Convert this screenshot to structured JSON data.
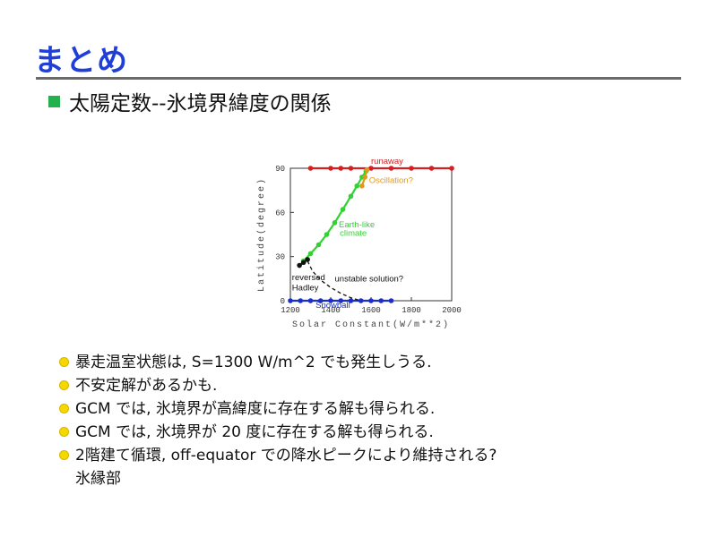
{
  "slide": {
    "title": "まとめ",
    "subheading": "太陽定数--氷境界緯度の関係",
    "bullets": [
      "暴走温室状態は, S=1300 W/m^2 でも発生しうる.",
      "不安定解があるかも.",
      "GCM では, 氷境界が高緯度に存在する解も得られる.",
      "GCM では, 氷境界が 20 度に存在する解も得られる.",
      "2階建て循環, off-equator での降水ピークにより維持される?"
    ],
    "bullet_continuation": "氷縁部"
  },
  "chart_data": {
    "type": "line",
    "xlabel": "Solar Constant(W/m**2)",
    "ylabel": "Latitude(degree)",
    "xlim": [
      1200,
      2000
    ],
    "ylim": [
      0,
      90
    ],
    "xticks": [
      1200,
      1400,
      1600,
      1800,
      2000
    ],
    "yticks": [
      0,
      30,
      60,
      90
    ],
    "tick_labels_x": [
      "1200",
      "1400",
      "1600",
      "1800",
      "2000"
    ],
    "tick_labels_y": [
      "0",
      "30",
      "60",
      "90"
    ],
    "series": [
      {
        "name": "runaway",
        "color": "#d42020",
        "x": [
          1300,
          1400,
          1450,
          1500,
          1600,
          1700,
          1800,
          1900,
          2000
        ],
        "y": [
          90,
          90,
          90,
          90,
          90,
          90,
          90,
          90,
          90
        ]
      },
      {
        "name": "Snowball",
        "color": "#1a2fc9",
        "x": [
          1200,
          1250,
          1300,
          1350,
          1400,
          1450,
          1500,
          1550,
          1600,
          1650,
          1700
        ],
        "y": [
          0,
          0,
          0,
          0,
          0,
          0,
          0,
          0,
          0,
          0,
          0
        ]
      },
      {
        "name": "Earth-like climate",
        "color": "#32d232",
        "x": [
          1265,
          1300,
          1340,
          1380,
          1420,
          1460,
          1500,
          1530,
          1555,
          1575
        ],
        "y": [
          27,
          32,
          38,
          45,
          53,
          62,
          71,
          78,
          84,
          88
        ]
      },
      {
        "name": "Oscillation?",
        "color": "#e09a18",
        "x": [
          1555,
          1570,
          1580
        ],
        "y": [
          78,
          84,
          89
        ]
      },
      {
        "name": "reversed Hadley",
        "color": "#111111",
        "x": [
          1245,
          1265,
          1285
        ],
        "y": [
          24,
          26,
          28
        ]
      },
      {
        "name": "unstable solution?",
        "color": "#111111",
        "dashed": true,
        "x": [
          1285,
          1310,
          1350,
          1400,
          1450,
          1500,
          1550
        ],
        "y": [
          27,
          20,
          14,
          9,
          5,
          2,
          0
        ]
      }
    ],
    "annotations": [
      {
        "text": "runaway",
        "color": "#d42020"
      },
      {
        "text": "Oscillation?",
        "color": "#e09a18"
      },
      {
        "text": "Earth-like",
        "color": "#32d232"
      },
      {
        "text": "climate",
        "color": "#32d232"
      },
      {
        "text": "unstable solution?",
        "color": "#111111"
      },
      {
        "text": "reversed",
        "color": "#111111"
      },
      {
        "text": "Hadley",
        "color": "#111111"
      },
      {
        "text": "Snowball",
        "color": "#1a2fc9"
      }
    ]
  }
}
